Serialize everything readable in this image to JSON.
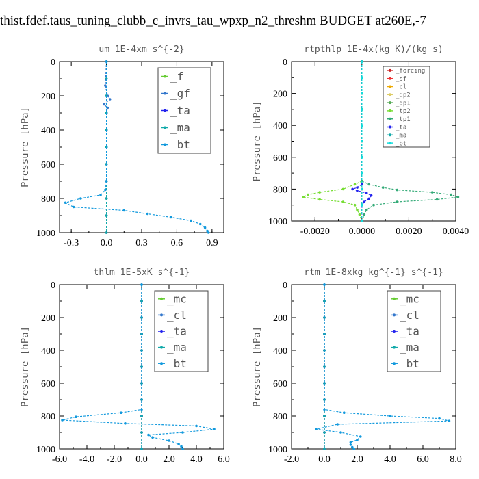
{
  "page_title": "thist.fdef.taus_tuning_clubb_c_invrs_tau_wpxp_n2_threshm  BUDGET at260E,-7",
  "chart_data": [
    {
      "type": "line",
      "title": "um  1E-4xm s^{-2}",
      "ylabel": "Pressure [hPa]",
      "xlim": [
        -0.4,
        1.0
      ],
      "ylim": [
        1000,
        0
      ],
      "xticks": [
        "-0.3",
        "0.0",
        "0.3",
        "0.6",
        "0.9"
      ],
      "xtick_values": [
        -0.3,
        0.0,
        0.3,
        0.6,
        0.9
      ],
      "yticks": [
        "0",
        "200",
        "400",
        "600",
        "800",
        "1000"
      ],
      "ytick_values": [
        0,
        200,
        400,
        600,
        800,
        1000
      ],
      "legend_font": 16,
      "series": [
        {
          "name": "_f",
          "color": "#66cc33",
          "pressure": [
            0,
            100,
            200,
            300,
            400,
            500,
            600,
            700,
            800,
            900,
            1000
          ],
          "values": [
            0,
            0,
            0,
            0,
            0,
            0,
            0,
            0,
            0,
            0,
            0
          ]
        },
        {
          "name": "_gf",
          "color": "#3377cc",
          "pressure": [
            0,
            140,
            200,
            220,
            250,
            270,
            300
          ],
          "values": [
            0,
            -0.01,
            0.01,
            0.03,
            -0.02,
            0.01,
            0
          ]
        },
        {
          "name": "_ta",
          "color": "#2222ee",
          "pressure": [
            0,
            100,
            200,
            300,
            400,
            500,
            600,
            700,
            800,
            900,
            1000
          ],
          "values": [
            0,
            0,
            0,
            0,
            0,
            0,
            0,
            0,
            0,
            0,
            0
          ]
        },
        {
          "name": "_ma",
          "color": "#11aaaa",
          "pressure": [
            0,
            100,
            200,
            300,
            400,
            500,
            600,
            700,
            800,
            900,
            1000
          ],
          "values": [
            0,
            0,
            0,
            0,
            0,
            0,
            0,
            0,
            0,
            0,
            0
          ]
        },
        {
          "name": "_bt",
          "color": "#1199dd",
          "pressure": [
            0,
            700,
            750,
            780,
            800,
            825,
            850,
            870,
            890,
            910,
            930,
            950,
            970,
            990,
            1000
          ],
          "values": [
            0,
            0,
            -0.01,
            -0.05,
            -0.22,
            -0.35,
            -0.28,
            0.15,
            0.35,
            0.55,
            0.72,
            0.8,
            0.84,
            0.86,
            0.87
          ]
        }
      ]
    },
    {
      "type": "line",
      "title": "rtpthlp  1E-4x(kg K)/(kg s)",
      "ylabel": "Pressure [hPa]",
      "xlim": [
        -0.003,
        0.004
      ],
      "ylim": [
        1000,
        0
      ],
      "xticks": [
        "-0.0020",
        "0.0000",
        "0.0020",
        "0.0040"
      ],
      "xtick_values": [
        -0.002,
        0.0,
        0.002,
        0.004
      ],
      "yticks": [
        "0",
        "200",
        "400",
        "600",
        "800",
        "1000"
      ],
      "ytick_values": [
        0,
        200,
        400,
        600,
        800,
        1000
      ],
      "legend_font": 9,
      "series": [
        {
          "name": "_forcing",
          "color": "#cc2222",
          "pressure": [
            0,
            100,
            200,
            300,
            400,
            500,
            600,
            700,
            800,
            900,
            1000
          ],
          "values": [
            0,
            0,
            0,
            0,
            0,
            0,
            0,
            0,
            0,
            0,
            0
          ]
        },
        {
          "name": "_sf",
          "color": "#ee3333",
          "pressure": [
            0,
            100,
            200,
            300,
            400,
            500,
            600,
            700,
            800,
            900,
            1000
          ],
          "values": [
            0,
            0,
            0,
            0,
            0,
            0,
            0,
            0,
            0,
            0,
            0
          ]
        },
        {
          "name": "_cl",
          "color": "#eeaa00",
          "pressure": [
            0,
            100,
            200,
            300,
            400,
            500,
            600,
            700,
            800,
            900,
            1000
          ],
          "values": [
            0,
            0,
            0,
            0,
            0,
            0,
            0,
            0,
            0,
            0,
            0
          ]
        },
        {
          "name": "_dp2",
          "color": "#ddcc66",
          "pressure": [
            0,
            100,
            200,
            300,
            400,
            500,
            600,
            700,
            800,
            900,
            1000
          ],
          "values": [
            0,
            0,
            0,
            0,
            0,
            0,
            0,
            0,
            0,
            0,
            0
          ]
        },
        {
          "name": "_dp1",
          "color": "#55aa55",
          "pressure": [
            0,
            100,
            200,
            300,
            400,
            500,
            600,
            700,
            800,
            900,
            1000
          ],
          "values": [
            0,
            0,
            0,
            0,
            0,
            0,
            0,
            0,
            0,
            0,
            0
          ]
        },
        {
          "name": "_tp2",
          "color": "#77dd33",
          "pressure": [
            0,
            750,
            770,
            800,
            820,
            835,
            850,
            865,
            880,
            900,
            930,
            960,
            1000
          ],
          "values": [
            0,
            0,
            -0.0003,
            -0.0008,
            -0.0018,
            -0.0023,
            -0.0025,
            -0.0018,
            -0.0008,
            -0.0003,
            -0.0002,
            -0.0001,
            0
          ]
        },
        {
          "name": "_tp1",
          "color": "#33aa77",
          "pressure": [
            0,
            750,
            770,
            790,
            805,
            820,
            835,
            850,
            865,
            880,
            900,
            930,
            960,
            1000
          ],
          "values": [
            0,
            0,
            0.0003,
            0.0009,
            0.0015,
            0.003,
            0.0038,
            0.0041,
            0.0032,
            0.0015,
            0.0005,
            0.0002,
            0.0001,
            0
          ]
        },
        {
          "name": "_ta",
          "color": "#2222ee",
          "pressure": [
            0,
            770,
            790,
            800,
            810,
            825,
            840,
            860,
            880,
            900,
            1000
          ],
          "values": [
            0,
            0,
            -0.0002,
            -0.0004,
            -0.0002,
            0.0002,
            0.0004,
            0.0003,
            0.0001,
            0,
            0
          ]
        },
        {
          "name": "_ma",
          "color": "#11aaaa",
          "pressure": [
            0,
            100,
            200,
            300,
            400,
            500,
            600,
            700,
            800,
            900,
            1000
          ],
          "values": [
            0,
            0,
            0,
            0,
            0,
            0,
            0,
            0,
            0,
            0,
            0
          ]
        },
        {
          "name": "_bt",
          "color": "#11dddd",
          "pressure": [
            0,
            100,
            200,
            300,
            400,
            500,
            600,
            700,
            800,
            900,
            1000
          ],
          "values": [
            0,
            0,
            0,
            0,
            0,
            0,
            0,
            0,
            0,
            0,
            0
          ]
        }
      ]
    },
    {
      "type": "line",
      "title": "thlm  1E-5xK s^{-1}",
      "ylabel": "Pressure [hPa]",
      "xlim": [
        -6.0,
        6.0
      ],
      "ylim": [
        1000,
        0
      ],
      "xticks": [
        "-6.0",
        "-4.0",
        "-2.0",
        "0.0",
        "2.0",
        "4.0",
        "6.0"
      ],
      "xtick_values": [
        -6.0,
        -4.0,
        -2.0,
        0.0,
        2.0,
        4.0,
        6.0
      ],
      "yticks": [
        "0",
        "200",
        "400",
        "600",
        "800",
        "1000"
      ],
      "ytick_values": [
        0,
        200,
        400,
        600,
        800,
        1000
      ],
      "legend_font": 16,
      "series": [
        {
          "name": "_mc",
          "color": "#66cc33",
          "pressure": [
            0,
            100,
            200,
            300,
            400,
            500,
            600,
            700,
            800,
            900,
            1000
          ],
          "values": [
            0,
            0,
            0,
            0,
            0,
            0,
            0,
            0,
            0,
            0,
            0
          ]
        },
        {
          "name": "_cl",
          "color": "#3377cc",
          "pressure": [
            0,
            100,
            200,
            300,
            400,
            500,
            600,
            700,
            800,
            900,
            1000
          ],
          "values": [
            0,
            0,
            0,
            0,
            0,
            0,
            0,
            0,
            0,
            0,
            0
          ]
        },
        {
          "name": "_ta",
          "color": "#2222ee",
          "pressure": [
            0,
            100,
            200,
            300,
            400,
            500,
            600,
            700,
            800,
            900,
            1000
          ],
          "values": [
            0,
            0,
            0,
            0,
            0,
            0,
            0,
            0,
            0,
            0,
            0
          ]
        },
        {
          "name": "_ma",
          "color": "#11aaaa",
          "pressure": [
            0,
            100,
            200,
            300,
            400,
            500,
            600,
            700,
            800,
            900,
            1000
          ],
          "values": [
            0,
            0,
            0,
            0,
            0,
            0,
            0,
            0,
            0,
            0,
            0
          ]
        },
        {
          "name": "_bt",
          "color": "#1199dd",
          "pressure": [
            0,
            760,
            780,
            805,
            825,
            845,
            860,
            880,
            900,
            915,
            930,
            950,
            970,
            985,
            1000
          ],
          "values": [
            0,
            0,
            -1.5,
            -4.8,
            -5.8,
            -1.2,
            4.0,
            5.3,
            3.0,
            0.5,
            0.8,
            2.0,
            2.7,
            2.9,
            3.0
          ]
        }
      ]
    },
    {
      "type": "line",
      "title": "rtm  1E-8xkg kg^{-1} s^{-1}",
      "ylabel": "Pressure [hPa]",
      "xlim": [
        -2.0,
        8.0
      ],
      "ylim": [
        1000,
        0
      ],
      "xticks": [
        "-2.0",
        "0.0",
        "2.0",
        "4.0",
        "6.0",
        "8.0"
      ],
      "xtick_values": [
        -2.0,
        0.0,
        2.0,
        4.0,
        6.0,
        8.0
      ],
      "yticks": [
        "0",
        "200",
        "400",
        "600",
        "800",
        "1000"
      ],
      "ytick_values": [
        0,
        200,
        400,
        600,
        800,
        1000
      ],
      "legend_font": 16,
      "series": [
        {
          "name": "_mc",
          "color": "#66cc33",
          "pressure": [
            0,
            100,
            200,
            300,
            400,
            500,
            600,
            700,
            800,
            900,
            1000
          ],
          "values": [
            0,
            0,
            0,
            0,
            0,
            0,
            0,
            0,
            0,
            0,
            0
          ]
        },
        {
          "name": "_cl",
          "color": "#3377cc",
          "pressure": [
            0,
            100,
            200,
            300,
            400,
            500,
            600,
            700,
            800,
            900,
            1000
          ],
          "values": [
            0,
            0,
            0,
            0,
            0,
            0,
            0,
            0,
            0,
            0,
            0
          ]
        },
        {
          "name": "_ta",
          "color": "#2222ee",
          "pressure": [
            0,
            100,
            200,
            300,
            400,
            500,
            600,
            700,
            800,
            900,
            1000
          ],
          "values": [
            0,
            0,
            0,
            0,
            0,
            0,
            0,
            0,
            0,
            0,
            0
          ]
        },
        {
          "name": "_ma",
          "color": "#11aaaa",
          "pressure": [
            0,
            100,
            200,
            300,
            400,
            500,
            600,
            700,
            800,
            900,
            1000
          ],
          "values": [
            0,
            0,
            0,
            0,
            0,
            0,
            0,
            0,
            0,
            0,
            0
          ]
        },
        {
          "name": "_bt",
          "color": "#1199dd",
          "pressure": [
            0,
            760,
            780,
            800,
            815,
            830,
            850,
            880,
            900,
            925,
            945,
            960,
            975,
            990,
            1000
          ],
          "values": [
            0,
            0,
            1.2,
            4.0,
            7.0,
            7.6,
            0.8,
            -0.5,
            1.0,
            2.2,
            2.0,
            1.6,
            1.6,
            1.7,
            1.8
          ]
        }
      ]
    }
  ]
}
